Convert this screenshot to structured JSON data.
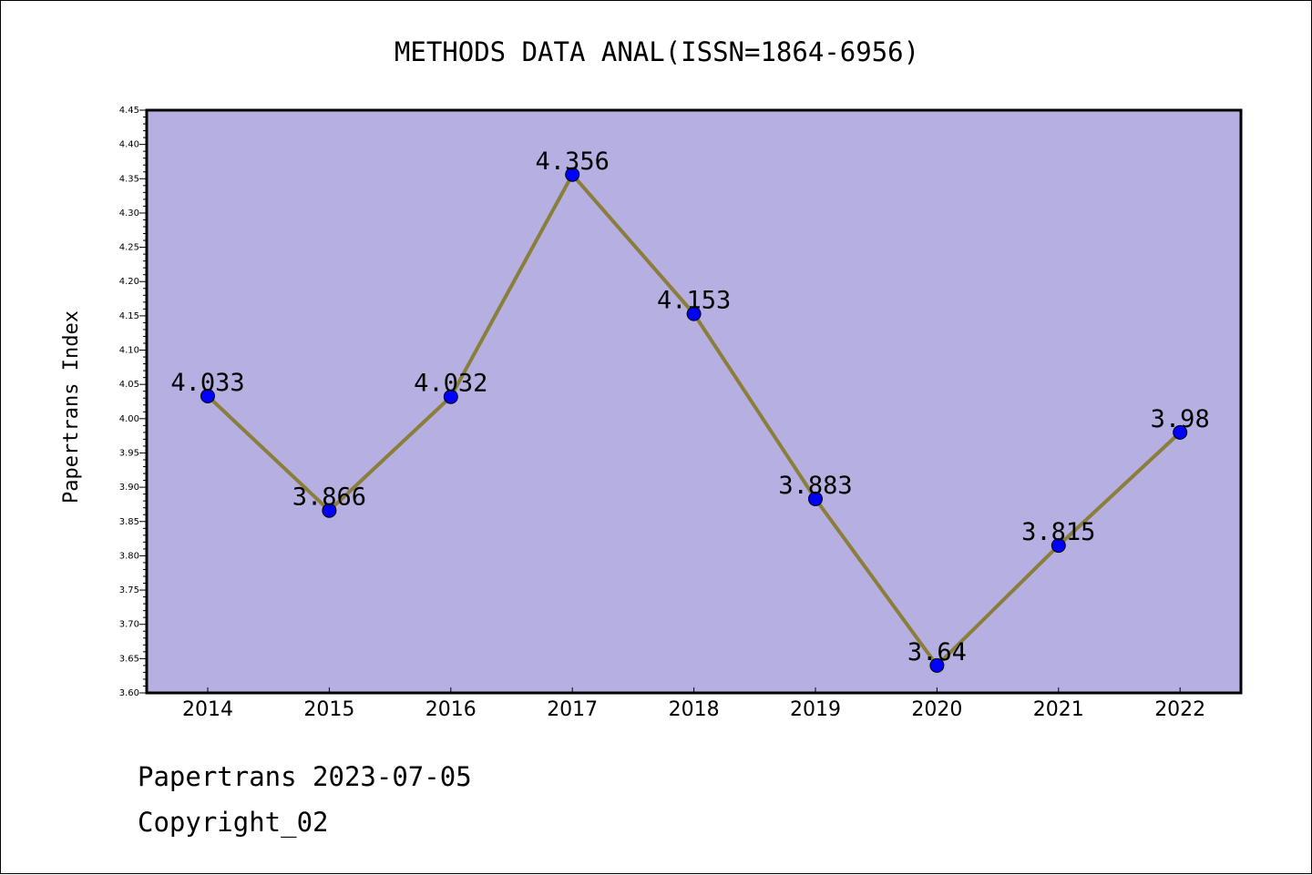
{
  "chart_data": {
    "type": "line",
    "title": "METHODS DATA ANAL(ISSN=1864-6956)",
    "xlabel": "",
    "ylabel": "Papertrans Index",
    "categories": [
      "2014",
      "2015",
      "2016",
      "2017",
      "2018",
      "2019",
      "2020",
      "2021",
      "2022"
    ],
    "series": [
      {
        "values": [
          4.033,
          3.866,
          4.032,
          4.356,
          4.153,
          3.883,
          3.64,
          3.815,
          3.98
        ]
      }
    ],
    "data_labels": [
      "4.033",
      "3.866",
      "4.032",
      "4.356",
      "4.153",
      "3.883",
      "3.64",
      "3.815",
      "3.98"
    ],
    "ylim": [
      3.6,
      4.45
    ],
    "yticks": [
      "3.60",
      "3.65",
      "3.70",
      "3.75",
      "3.80",
      "3.85",
      "3.90",
      "3.95",
      "4.00",
      "4.05",
      "4.10",
      "4.15",
      "4.20",
      "4.25",
      "4.30",
      "4.35",
      "4.40",
      "4.45"
    ],
    "grid": false,
    "legend": "none",
    "colors": {
      "plot_background": "#b5afe2",
      "line": "#8b7d3a",
      "marker": "#0000ff",
      "axes": "#000000"
    }
  },
  "footer": {
    "date_line": "Papertrans 2023-07-05",
    "copyright_line": "Copyright_02"
  }
}
